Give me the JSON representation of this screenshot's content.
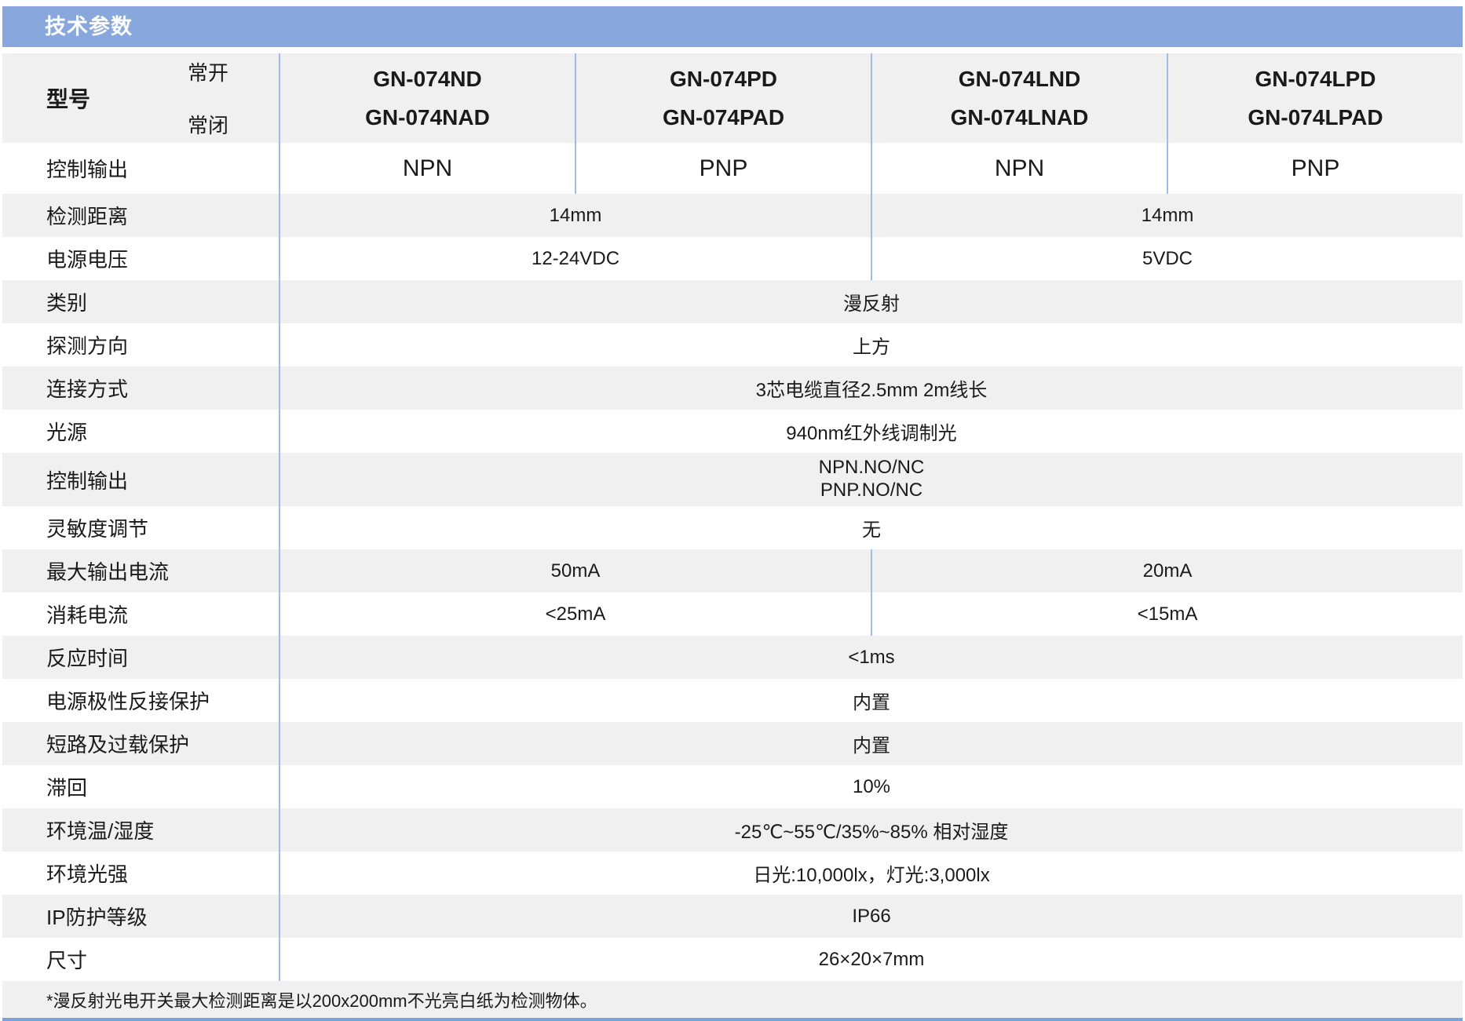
{
  "header": {
    "title": "技术参数"
  },
  "model_row": {
    "label": "型号",
    "sub_labels": [
      "常开",
      "常闭"
    ],
    "columns": [
      {
        "no": "GN-074ND",
        "nc": "GN-074NAD"
      },
      {
        "no": "GN-074PD",
        "nc": "GN-074PAD"
      },
      {
        "no": "GN-074LND",
        "nc": "GN-074LNAD"
      },
      {
        "no": "GN-074LPD",
        "nc": "GN-074LPAD"
      }
    ]
  },
  "control_output_row": {
    "label": "控制输出",
    "values": [
      "NPN",
      "PNP",
      "NPN",
      "PNP"
    ]
  },
  "rows": [
    {
      "label": "检测距离",
      "type": "half",
      "left": "14mm",
      "right": "14mm"
    },
    {
      "label": "电源电压",
      "type": "half",
      "left": "12-24VDC",
      "right": "5VDC"
    },
    {
      "label": "类别",
      "type": "full",
      "value": "漫反射"
    },
    {
      "label": "探测方向",
      "type": "full",
      "value": "上方"
    },
    {
      "label": "连接方式",
      "type": "full",
      "value": "3芯电缆直径2.5mm 2m线长"
    },
    {
      "label": "光源",
      "type": "full",
      "value": "940nm红外线调制光"
    },
    {
      "label": "控制输出",
      "type": "full2",
      "line1": "NPN.NO/NC",
      "line2": "PNP.NO/NC"
    },
    {
      "label": "灵敏度调节",
      "type": "full",
      "value": "无"
    },
    {
      "label": "最大输出电流",
      "type": "half",
      "left": "50mA",
      "right": "20mA"
    },
    {
      "label": "消耗电流",
      "type": "half",
      "left": "<25mA",
      "right": "<15mA"
    },
    {
      "label": "反应时间",
      "type": "full",
      "value": "<1ms"
    },
    {
      "label": "电源极性反接保护",
      "type": "full",
      "value": "内置"
    },
    {
      "label": "短路及过载保护",
      "type": "full",
      "value": "内置"
    },
    {
      "label": "滞回",
      "type": "full",
      "value": "10%"
    },
    {
      "label": "环境温/湿度",
      "type": "full",
      "value": "-25℃~55℃/35%~85% 相对湿度"
    },
    {
      "label": "环境光强",
      "type": "full",
      "value": "日光:10,000lx，灯光:3,000lx"
    },
    {
      "label": "IP防护等级",
      "type": "full",
      "value": "IP66"
    },
    {
      "label": "尺寸",
      "type": "full",
      "value": "26×20×7mm"
    }
  ],
  "footnote": "*漫反射光电开关最大检测距离是以200x200mm不光亮白纸为检测物体。",
  "colors": {
    "header_bar": "#88a7dc",
    "header_text": "#ffffff",
    "divider_line": "#9fbbe6",
    "row_stripe": "#f0f0f0",
    "bottom_rule": "#7aa3d8"
  }
}
